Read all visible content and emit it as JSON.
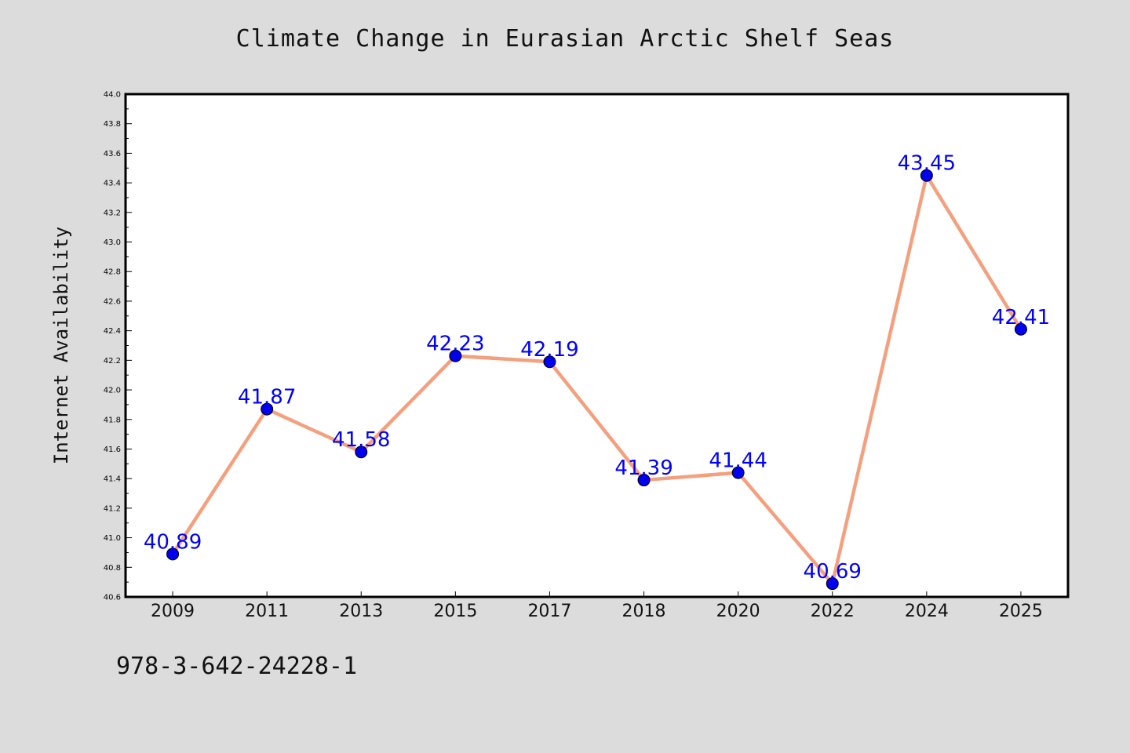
{
  "title": "Climate Change in Eurasian Arctic Shelf Seas",
  "footnote": "978-3-642-24228-1",
  "chart_data": {
    "type": "line",
    "title": "Climate Change in Eurasian Arctic Shelf Seas",
    "xlabel": "",
    "ylabel": "Internet Availability",
    "categories": [
      "2009",
      "2011",
      "2013",
      "2015",
      "2017",
      "2018",
      "2020",
      "2022",
      "2024",
      "2025"
    ],
    "series": [
      {
        "values": [
          40.89,
          41.87,
          41.58,
          42.23,
          42.19,
          41.39,
          41.44,
          40.69,
          43.45,
          42.41
        ],
        "data_labels": [
          "40.89",
          "41.87",
          "41.58",
          "42.23",
          "42.19",
          "41.39",
          "41.44",
          "40.69",
          "43.45",
          "42.41"
        ],
        "line_color": "#f4a07e",
        "marker_color": "#0000ee"
      }
    ],
    "ylim": [
      40.6,
      44.0
    ],
    "yticks": [
      "40.6",
      "40.8",
      "41.0",
      "41.2",
      "41.4",
      "41.6",
      "41.8",
      "42.0",
      "42.2",
      "42.4",
      "42.6",
      "42.8",
      "43.0",
      "43.2",
      "43.4",
      "43.6",
      "43.8",
      "44.0"
    ],
    "grid": false,
    "label_color": "#0000ff",
    "plot_background": "#ffffff",
    "figure_background": "#dcdcdc"
  }
}
